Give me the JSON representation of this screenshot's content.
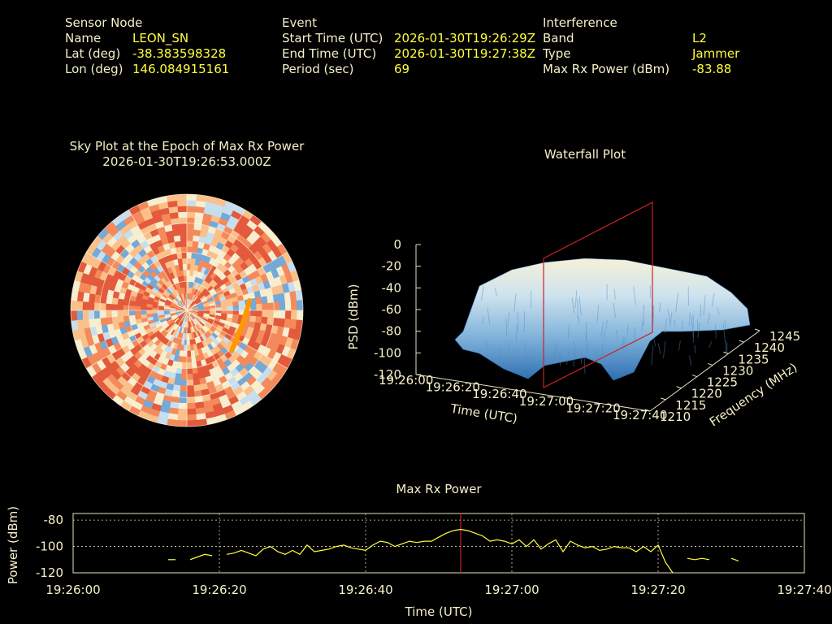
{
  "colors": {
    "background": "#000000",
    "text": "#f5f0c8",
    "value": "#ffff3c",
    "marker": "#cc2222"
  },
  "header": {
    "sensor": {
      "title": "Sensor Node",
      "rows": [
        {
          "label": "Name",
          "value": "LEON_SN"
        },
        {
          "label": "Lat (deg)",
          "value": "-38.383598328"
        },
        {
          "label": "Lon (deg)",
          "value": "146.084915161"
        }
      ]
    },
    "event": {
      "title": "Event",
      "rows": [
        {
          "label": "Start Time (UTC)",
          "value": "2026-01-30T19:26:29Z"
        },
        {
          "label": "End Time (UTC)",
          "value": "2026-01-30T19:27:38Z"
        },
        {
          "label": "Period (sec)",
          "value": "69"
        }
      ]
    },
    "interference": {
      "title": "Interference",
      "rows": [
        {
          "label": "Band",
          "value": "L2"
        },
        {
          "label": "Type",
          "value": "Jammer"
        },
        {
          "label": "Max Rx Power (dBm)",
          "value": "-83.88"
        }
      ]
    }
  },
  "chart_data": [
    {
      "type": "heatmap",
      "subtype": "polar-sky-plot",
      "title": "Sky Plot at the Epoch of Max Rx Power",
      "subtitle": "2026-01-30T19:26:53.000Z",
      "rings": 4,
      "spokes": 12,
      "highlight_color": "#ff9900",
      "colors": [
        "#2f6db5",
        "#74a9d8",
        "#c6dff0",
        "#f7eed0",
        "#fbc08a",
        "#f48a5c",
        "#e35a3c"
      ]
    },
    {
      "type": "surface",
      "subtype": "waterfall",
      "title": "Waterfall Plot",
      "zlabel": "PSD (dBm)",
      "xlabel": "Time (UTC)",
      "ylabel": "Frequency (MHz)",
      "zticks": [
        "0",
        "-20",
        "-40",
        "-60",
        "-80",
        "-100",
        "-120"
      ],
      "xticks": [
        "19:26:00",
        "19:26:20",
        "19:26:40",
        "19:27:00",
        "19:27:20",
        "19:27:40"
      ],
      "yticks": [
        "1210",
        "1215",
        "1220",
        "1225",
        "1230",
        "1235",
        "1240",
        "1245"
      ],
      "zlim": [
        -120,
        0
      ],
      "ylim": [
        1210,
        1245
      ],
      "marker_time": "19:26:53"
    },
    {
      "type": "line",
      "title": "Max Rx Power",
      "xlabel": "Time (UTC)",
      "ylabel": "Power (dBm)",
      "xticks": [
        "19:26:00",
        "19:26:20",
        "19:26:40",
        "19:27:00",
        "19:27:20",
        "19:27:40"
      ],
      "yticks": [
        "-80",
        "-100",
        "-120"
      ],
      "xlim_sec": [
        0,
        100
      ],
      "ylim": [
        -120,
        -75
      ],
      "marker_sec": 53,
      "line_color": "#ffff3c",
      "segments": [
        [
          [
            13,
            -110
          ],
          [
            14,
            -110
          ]
        ],
        [
          [
            16,
            -110
          ],
          [
            17,
            -108
          ],
          [
            18,
            -106
          ],
          [
            19,
            -107
          ]
        ],
        [
          [
            21,
            -106
          ],
          [
            22,
            -105
          ],
          [
            23,
            -103
          ],
          [
            24,
            -105
          ],
          [
            25,
            -107
          ],
          [
            26,
            -102
          ],
          [
            27,
            -100
          ],
          [
            28,
            -104
          ],
          [
            29,
            -106
          ],
          [
            30,
            -103
          ],
          [
            31,
            -106
          ],
          [
            32,
            -99
          ],
          [
            33,
            -104
          ],
          [
            34,
            -103
          ],
          [
            35,
            -102
          ],
          [
            36,
            -100
          ],
          [
            37,
            -99
          ],
          [
            38,
            -101
          ],
          [
            39,
            -102
          ],
          [
            40,
            -103
          ],
          [
            41,
            -99
          ],
          [
            42,
            -96
          ],
          [
            43,
            -97
          ],
          [
            44,
            -100
          ],
          [
            45,
            -98
          ],
          [
            46,
            -96
          ],
          [
            47,
            -97
          ],
          [
            48,
            -96
          ],
          [
            49,
            -96
          ],
          [
            50,
            -93
          ],
          [
            51,
            -90
          ],
          [
            52,
            -88
          ],
          [
            53,
            -87
          ],
          [
            54,
            -88
          ],
          [
            55,
            -90
          ],
          [
            56,
            -92
          ],
          [
            57,
            -96
          ],
          [
            58,
            -95
          ],
          [
            59,
            -96
          ],
          [
            60,
            -98
          ],
          [
            61,
            -95
          ],
          [
            62,
            -100
          ],
          [
            63,
            -95
          ],
          [
            64,
            -102
          ],
          [
            65,
            -98
          ],
          [
            66,
            -95
          ],
          [
            67,
            -104
          ],
          [
            68,
            -96
          ],
          [
            69,
            -99
          ],
          [
            70,
            -101
          ],
          [
            71,
            -100
          ],
          [
            72,
            -103
          ],
          [
            73,
            -102
          ],
          [
            74,
            -100
          ],
          [
            75,
            -101
          ],
          [
            76,
            -101
          ],
          [
            77,
            -104
          ],
          [
            78,
            -100
          ],
          [
            79,
            -104
          ],
          [
            80,
            -99
          ],
          [
            81,
            -112
          ],
          [
            82,
            -120
          ]
        ],
        [
          [
            84,
            -109
          ],
          [
            85,
            -110
          ],
          [
            86,
            -109
          ],
          [
            87,
            -110
          ]
        ],
        [
          [
            90,
            -109
          ],
          [
            91,
            -111
          ]
        ]
      ]
    }
  ]
}
